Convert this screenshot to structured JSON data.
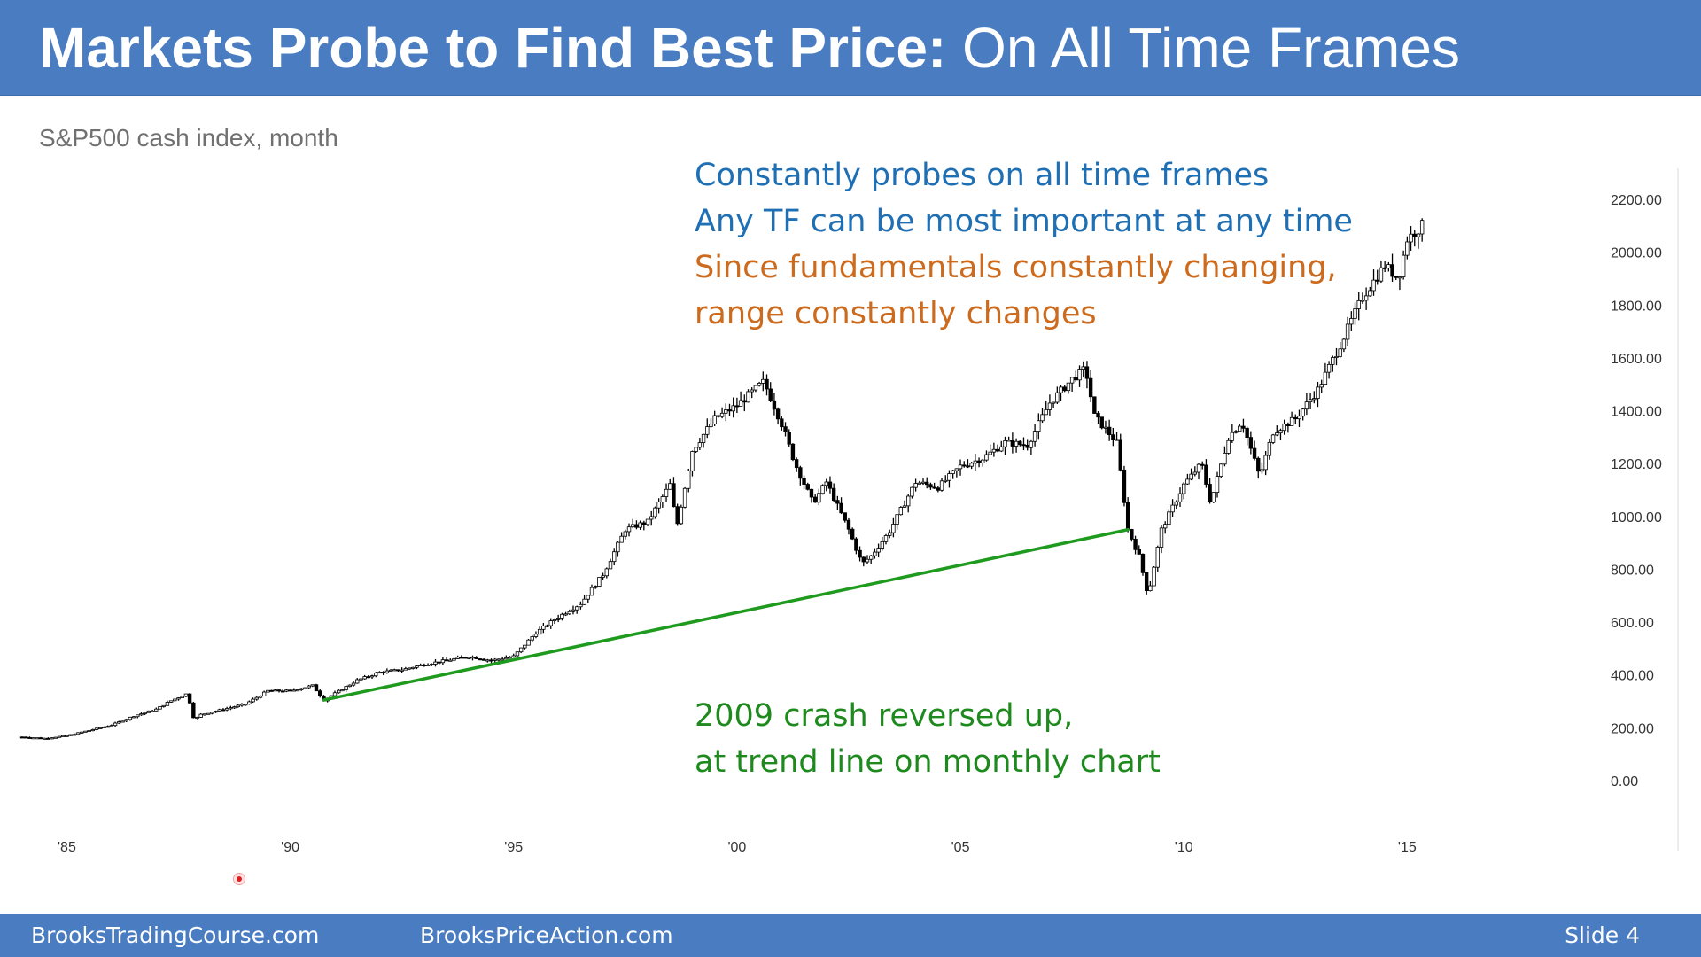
{
  "header": {
    "title_bold": "Markets Probe to Find Best Price:",
    "title_normal": " On All Time Frames"
  },
  "subtitle": "S&P500 cash index,  month",
  "notes": {
    "line1": "Constantly probes on all time frames",
    "line2": "Any TF can be most important at any time",
    "line3": "Since fundamentals constantly changing,",
    "line4": "range constantly changes",
    "green1": "2009 crash reversed up,",
    "green2": "at trend line on monthly chart"
  },
  "footer": {
    "left": "BrooksTradingCourse.com",
    "middle": "BrooksPriceAction.com",
    "right": "Slide  4"
  },
  "colors": {
    "header_bg": "#4a7cc2",
    "note_blue": "#1f6fb4",
    "note_orange": "#cc6a1e",
    "note_green": "#1e8a1e",
    "trend_line": "#1e9a1e",
    "candles": "#000000"
  },
  "chart_data": {
    "type": "candlestick",
    "title": "",
    "timeframe": "month",
    "x_tick_labels": [
      "'85",
      "'90",
      "'95",
      "'00",
      "'05",
      "'10",
      "'15"
    ],
    "x_tick_years": [
      1985,
      1990,
      1995,
      2000,
      2005,
      2010,
      2015
    ],
    "x_range": [
      1984.0,
      2016.5
    ],
    "y_tick_labels": [
      "2200.00",
      "2000.00",
      "1800.00",
      "1600.00",
      "1400.00",
      "1200.00",
      "1000.00",
      "800.00",
      "600.00",
      "400.00",
      "200.00",
      "0.00"
    ],
    "y_ticks": [
      2200,
      2000,
      1800,
      1600,
      1400,
      1200,
      1000,
      800,
      600,
      400,
      200,
      0
    ],
    "y_range": [
      0,
      2200
    ],
    "grid": false,
    "price_path": [
      [
        1984.0,
        165
      ],
      [
        1984.5,
        160
      ],
      [
        1985.0,
        170
      ],
      [
        1985.5,
        190
      ],
      [
        1986.0,
        210
      ],
      [
        1986.5,
        245
      ],
      [
        1987.0,
        270
      ],
      [
        1987.3,
        300
      ],
      [
        1987.7,
        330
      ],
      [
        1987.85,
        230
      ],
      [
        1988.0,
        250
      ],
      [
        1988.5,
        270
      ],
      [
        1989.0,
        290
      ],
      [
        1989.5,
        340
      ],
      [
        1990.0,
        340
      ],
      [
        1990.5,
        360
      ],
      [
        1990.75,
        305
      ],
      [
        1991.0,
        330
      ],
      [
        1991.5,
        380
      ],
      [
        1992.0,
        410
      ],
      [
        1992.5,
        420
      ],
      [
        1993.0,
        440
      ],
      [
        1993.5,
        455
      ],
      [
        1994.0,
        470
      ],
      [
        1994.5,
        455
      ],
      [
        1995.0,
        470
      ],
      [
        1995.5,
        560
      ],
      [
        1996.0,
        620
      ],
      [
        1996.5,
        670
      ],
      [
        1997.0,
        780
      ],
      [
        1997.5,
        950
      ],
      [
        1998.0,
        980
      ],
      [
        1998.5,
        1120
      ],
      [
        1998.65,
        960
      ],
      [
        1999.0,
        1250
      ],
      [
        1999.5,
        1370
      ],
      [
        2000.0,
        1420
      ],
      [
        2000.6,
        1510
      ],
      [
        2001.0,
        1350
      ],
      [
        2001.3,
        1200
      ],
      [
        2001.7,
        1050
      ],
      [
        2002.0,
        1130
      ],
      [
        2002.5,
        950
      ],
      [
        2002.8,
        820
      ],
      [
        2003.0,
        850
      ],
      [
        2003.4,
        940
      ],
      [
        2004.0,
        1130
      ],
      [
        2004.5,
        1110
      ],
      [
        2005.0,
        1190
      ],
      [
        2005.5,
        1220
      ],
      [
        2006.0,
        1280
      ],
      [
        2006.5,
        1270
      ],
      [
        2007.0,
        1430
      ],
      [
        2007.5,
        1520
      ],
      [
        2007.8,
        1560
      ],
      [
        2008.0,
        1380
      ],
      [
        2008.5,
        1280
      ],
      [
        2008.75,
        950
      ],
      [
        2009.0,
        850
      ],
      [
        2009.2,
        700
      ],
      [
        2009.5,
        950
      ],
      [
        2010.0,
        1120
      ],
      [
        2010.4,
        1200
      ],
      [
        2010.6,
        1050
      ],
      [
        2011.0,
        1300
      ],
      [
        2011.3,
        1360
      ],
      [
        2011.7,
        1150
      ],
      [
        2012.0,
        1320
      ],
      [
        2012.5,
        1370
      ],
      [
        2013.0,
        1480
      ],
      [
        2013.5,
        1650
      ],
      [
        2014.0,
        1830
      ],
      [
        2014.5,
        1950
      ],
      [
        2014.8,
        1900
      ],
      [
        2015.0,
        2050
      ],
      [
        2015.4,
        2110
      ]
    ],
    "trend_line": {
      "points": [
        [
          1990.75,
          305
        ],
        [
          2008.75,
          950
        ]
      ]
    },
    "annotations": [
      "Constantly probes on all time frames",
      "Any TF can be most important at any time",
      "Since fundamentals constantly changing,",
      "range constantly changes",
      "2009 crash reversed up,",
      "at trend line on monthly chart"
    ]
  }
}
